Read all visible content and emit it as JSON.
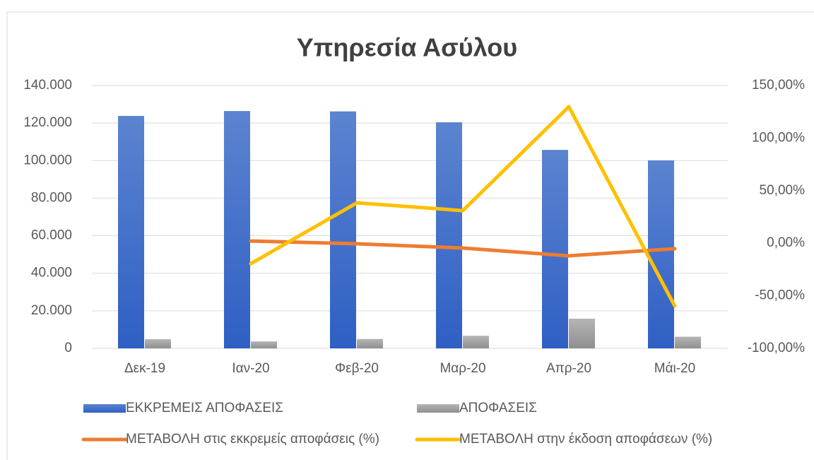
{
  "chart_data": {
    "type": "bar",
    "title": "Υπηρεσία Ασύλου",
    "categories": [
      "Δεκ-19",
      "Ιαν-20",
      "Φεβ-20",
      "Μαρ-20",
      "Απρ-20",
      "Μάι-20"
    ],
    "series": [
      {
        "name": "ΕΚΚΡΕΜΕΙΣ ΑΠΟΦΑΣΕΙΣ",
        "type": "bar",
        "color": "#4472c4",
        "values": [
          123800,
          126400,
          126200,
          120400,
          105700,
          100100
        ]
      },
      {
        "name": "ΑΠΟΦΑΣΕΙΣ",
        "type": "bar",
        "color": "#a5a5a5",
        "values": [
          4900,
          3700,
          5000,
          6700,
          15800,
          6200
        ]
      },
      {
        "name": "ΜΕΤΑΒΟΛΗ στις εκκρεμείς αποφάσεις (%)",
        "type": "line",
        "axis": "y2",
        "color": "#ed7d31",
        "values": [
          null,
          2.1,
          -0.5,
          -4.6,
          -12,
          -5.2
        ]
      },
      {
        "name": "ΜΕΤΑΒΟΛΗ στην έκδοση αποφάσεων (%)",
        "type": "line",
        "axis": "y2",
        "color": "#ffc000",
        "values": [
          null,
          -19.4,
          38.4,
          31,
          129.8,
          -59.7
        ]
      }
    ],
    "ylim": [
      0,
      140000
    ],
    "yticks": [
      0,
      {
        "value": 20000,
        "label": "20.000"
      },
      {
        "value": 40000,
        "label": "40.000"
      },
      {
        "value": 60000,
        "label": "60.000"
      },
      {
        "value": 80000,
        "label": "80.000"
      },
      {
        "value": 100000,
        "label": "100.000"
      },
      {
        "value": 120000,
        "label": "120.000"
      },
      {
        "value": 140000,
        "label": "140.000"
      }
    ],
    "y2lim": [
      -100,
      150
    ],
    "y2ticks": [
      {
        "value": -100,
        "label": "-100,00%"
      },
      {
        "value": -50,
        "label": "-50,00%"
      },
      {
        "value": 0,
        "label": "0,00%"
      },
      {
        "value": 50,
        "label": "50,00%"
      },
      {
        "value": 100,
        "label": "100,00%"
      },
      {
        "value": 150,
        "label": "150,00%"
      }
    ],
    "grid": true,
    "legend": "bottom"
  }
}
